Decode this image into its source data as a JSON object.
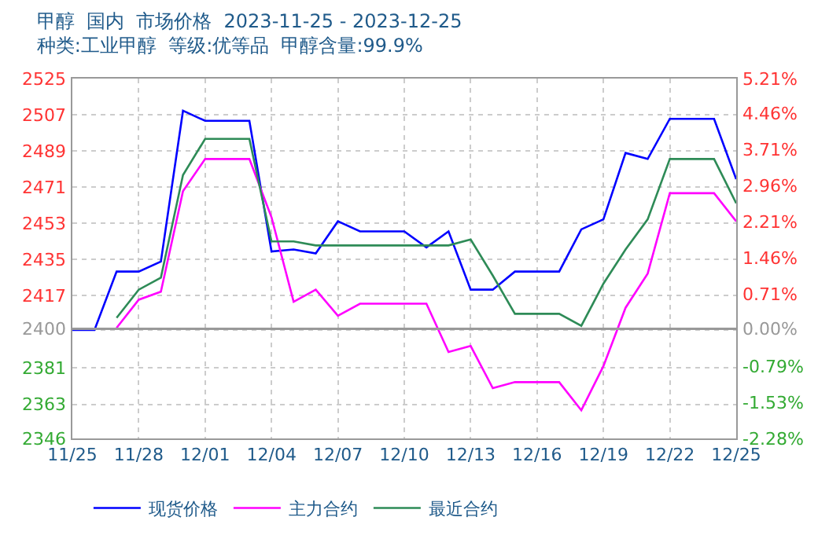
{
  "chart_data": {
    "type": "line",
    "title": "甲醇  国内  市场价格  2023-11-25 - 2023-12-25",
    "subtitle": "种类:工业甲醇  等级:优等品  甲醇含量:99.9%",
    "x": [
      "2023-11-25",
      "2023-11-26",
      "2023-11-27",
      "2023-11-28",
      "2023-11-29",
      "2023-11-30",
      "2023-12-01",
      "2023-12-02",
      "2023-12-03",
      "2023-12-04",
      "2023-12-05",
      "2023-12-06",
      "2023-12-07",
      "2023-12-08",
      "2023-12-09",
      "2023-12-10",
      "2023-12-11",
      "2023-12-12",
      "2023-12-13",
      "2023-12-14",
      "2023-12-15",
      "2023-12-16",
      "2023-12-17",
      "2023-12-18",
      "2023-12-19",
      "2023-12-20",
      "2023-12-21",
      "2023-12-22",
      "2023-12-23",
      "2023-12-24",
      "2023-12-25"
    ],
    "series": [
      {
        "name": "现货价格",
        "color": "#0000ff",
        "values": [
          2400,
          2400,
          2429,
          2429,
          2434,
          2509,
          2504,
          2504,
          2504,
          2439,
          2440,
          2438,
          2454,
          2449,
          2449,
          2449,
          2441,
          2449,
          2420,
          2420,
          2429,
          2429,
          2429,
          2450,
          2455,
          2488,
          2485,
          2505,
          2505,
          2505,
          2475
        ]
      },
      {
        "name": "主力合约",
        "color": "#ff00ff",
        "values": [
          null,
          null,
          2401,
          2415,
          2419,
          2469,
          2485,
          2485,
          2485,
          2456,
          2414,
          2420,
          2407,
          2413,
          2413,
          2413,
          2413,
          2389,
          2392,
          2371,
          2374,
          2374,
          2374,
          2360,
          2382,
          2411,
          2428,
          2468,
          2468,
          2468,
          2454
        ]
      },
      {
        "name": "最近合约",
        "color": "#2e8b57",
        "values": [
          null,
          null,
          2406,
          2420,
          2426,
          2477,
          2495,
          2495,
          2495,
          2444,
          2444,
          2442,
          2442,
          2442,
          2442,
          2442,
          2442,
          2442,
          2445,
          2427,
          2408,
          2408,
          2408,
          2402,
          2423,
          2440,
          2455,
          2485,
          2485,
          2485,
          2463
        ]
      }
    ],
    "xlim": [
      "2023-11-25",
      "2023-12-25"
    ],
    "xticks": [
      {
        "value": "2023-11-25",
        "label": "11/25"
      },
      {
        "value": "2023-11-28",
        "label": "11/28"
      },
      {
        "value": "2023-12-01",
        "label": "12/01"
      },
      {
        "value": "2023-12-04",
        "label": "12/04"
      },
      {
        "value": "2023-12-07",
        "label": "12/07"
      },
      {
        "value": "2023-12-10",
        "label": "12/10"
      },
      {
        "value": "2023-12-13",
        "label": "12/13"
      },
      {
        "value": "2023-12-16",
        "label": "12/16"
      },
      {
        "value": "2023-12-19",
        "label": "12/19"
      },
      {
        "value": "2023-12-22",
        "label": "12/22"
      },
      {
        "value": "2023-12-25",
        "label": "12/25"
      }
    ],
    "ylim": [
      2346,
      2525
    ],
    "yticks": [
      2346,
      2363,
      2381,
      2400,
      2417,
      2435,
      2453,
      2471,
      2489,
      2507,
      2525
    ],
    "y2lim": [
      -2.28,
      5.21
    ],
    "y2ticks": [
      {
        "value": -2.28,
        "label": "-2.28%"
      },
      {
        "value": -1.53,
        "label": "-1.53%"
      },
      {
        "value": -0.79,
        "label": "-0.79%"
      },
      {
        "value": 0,
        "label": "0.00%"
      },
      {
        "value": 0.71,
        "label": "0.71%"
      },
      {
        "value": 1.46,
        "label": "1.46%"
      },
      {
        "value": 2.21,
        "label": "2.21%"
      },
      {
        "value": 2.96,
        "label": "2.96%"
      },
      {
        "value": 3.71,
        "label": "3.71%"
      },
      {
        "value": 4.46,
        "label": "4.46%"
      },
      {
        "value": 5.21,
        "label": "5.21%"
      }
    ],
    "grid": true,
    "legend": "bottom",
    "marker": "none",
    "line_style": "solid"
  }
}
